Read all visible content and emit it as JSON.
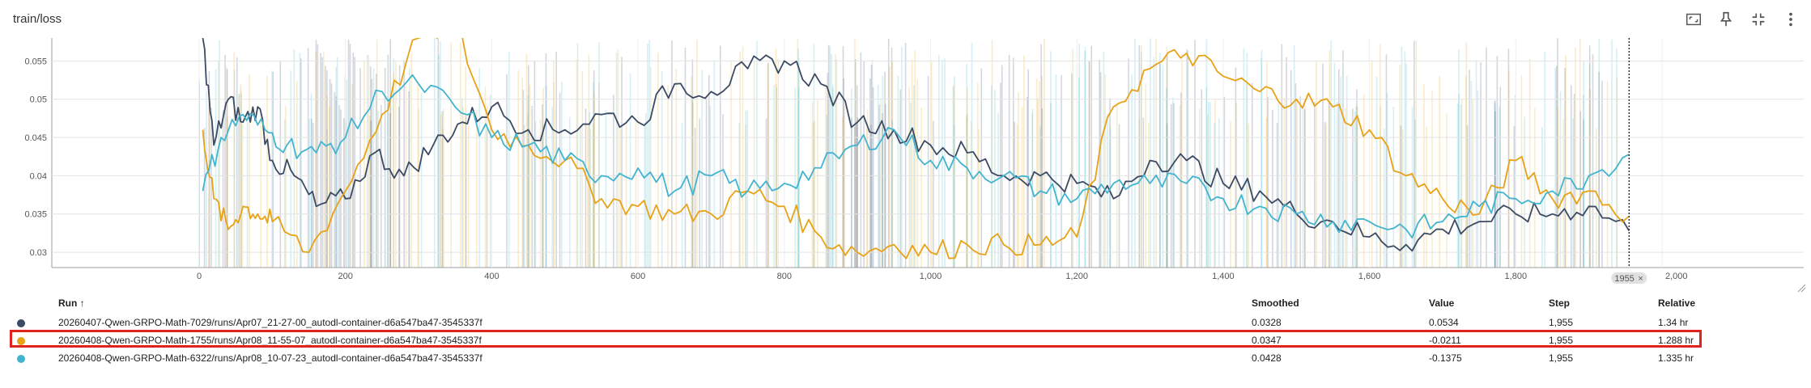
{
  "card": {
    "title": "train/loss"
  },
  "toolbar": [
    {
      "name": "fit-domain-button",
      "icon": "fit-screen-icon"
    },
    {
      "name": "pin-button",
      "icon": "pin-icon"
    },
    {
      "name": "collapse-button",
      "icon": "collapse-icon"
    },
    {
      "name": "more-menu-button",
      "icon": "more-vert-icon"
    }
  ],
  "step_marker": {
    "label": "1955",
    "close": "×"
  },
  "table": {
    "headers": {
      "run": "Run",
      "sort": "↑",
      "smoothed": "Smoothed",
      "value": "Value",
      "step": "Step",
      "relative": "Relative"
    },
    "rows": [
      {
        "run": "20260407-Qwen-GRPO-Math-7029/runs/Apr07_21-27-00_autodl-container-d6a547ba47-3545337f",
        "smoothed": "0.0328",
        "value": "0.0534",
        "step": "1,955",
        "relative": "1.34 hr",
        "color": "#3c4a63"
      },
      {
        "run": "20260408-Qwen-GRPO-Math-1755/runs/Apr08_11-55-07_autodl-container-d6a547ba47-3545337f",
        "smoothed": "0.0347",
        "value": "-0.0211",
        "step": "1,955",
        "relative": "1.288 hr",
        "color": "#e8a215"
      },
      {
        "run": "20260408-Qwen-GRPO-Math-6322/runs/Apr08_10-07-23_autodl-container-d6a547ba47-3545337f",
        "smoothed": "0.0428",
        "value": "-0.1375",
        "step": "1,955",
        "relative": "1.335 hr",
        "color": "#42b4cf"
      }
    ]
  },
  "chart_data": {
    "type": "line",
    "title": "train/loss",
    "xlabel": "",
    "ylabel": "",
    "xlim": [
      0,
      2000
    ],
    "ylim": [
      0.028,
      0.058
    ],
    "x_ticks": [
      "0",
      "200",
      "400",
      "600",
      "800",
      "1,000",
      "1,200",
      "1,400",
      "1,600",
      "1,800",
      "2,000"
    ],
    "y_ticks": [
      "0.03",
      "0.035",
      "0.04",
      "0.045",
      "0.05",
      "0.055"
    ],
    "grid": true,
    "cursor_step": 1955,
    "series": [
      {
        "name": "20260407-Qwen-GRPO-Math-7029/runs/Apr07_21-27-00_autodl-container-d6a547ba47-3545337f",
        "color": "#3c4a63",
        "x": [
          5,
          20,
          40,
          60,
          80,
          100,
          130,
          160,
          200,
          240,
          280,
          320,
          360,
          400,
          450,
          500,
          550,
          600,
          650,
          700,
          750,
          800,
          850,
          900,
          950,
          1000,
          1050,
          1100,
          1150,
          1200,
          1250,
          1300,
          1350,
          1400,
          1450,
          1500,
          1550,
          1600,
          1650,
          1700,
          1750,
          1800,
          1850,
          1900,
          1955
        ],
        "y": [
          0.058,
          0.044,
          0.05,
          0.047,
          0.049,
          0.042,
          0.04,
          0.036,
          0.037,
          0.043,
          0.04,
          0.044,
          0.047,
          0.049,
          0.046,
          0.046,
          0.048,
          0.047,
          0.052,
          0.051,
          0.054,
          0.055,
          0.052,
          0.047,
          0.046,
          0.044,
          0.043,
          0.04,
          0.04,
          0.039,
          0.037,
          0.042,
          0.042,
          0.039,
          0.038,
          0.035,
          0.034,
          0.032,
          0.031,
          0.033,
          0.034,
          0.035,
          0.035,
          0.036,
          0.0328
        ]
      },
      {
        "name": "20260408-Qwen-GRPO-Math-1755/runs/Apr08_11-55-07_autodl-container-d6a547ba47-3545337f",
        "color": "#e8a215",
        "x": [
          5,
          20,
          40,
          60,
          80,
          100,
          150,
          200,
          250,
          300,
          350,
          400,
          450,
          500,
          550,
          600,
          650,
          700,
          750,
          800,
          850,
          900,
          950,
          1000,
          1050,
          1100,
          1150,
          1200,
          1250,
          1300,
          1350,
          1400,
          1450,
          1500,
          1550,
          1600,
          1650,
          1700,
          1750,
          1800,
          1850,
          1900,
          1955
        ],
        "y": [
          0.046,
          0.037,
          0.033,
          0.036,
          0.035,
          0.034,
          0.03,
          0.038,
          0.048,
          0.058,
          0.06,
          0.046,
          0.044,
          0.042,
          0.037,
          0.036,
          0.035,
          0.035,
          0.038,
          0.036,
          0.032,
          0.03,
          0.031,
          0.03,
          0.031,
          0.031,
          0.031,
          0.032,
          0.049,
          0.054,
          0.056,
          0.053,
          0.051,
          0.05,
          0.049,
          0.046,
          0.04,
          0.037,
          0.035,
          0.042,
          0.037,
          0.038,
          0.0347
        ]
      },
      {
        "name": "20260408-Qwen-GRPO-Math-6322/runs/Apr08_10-07-23_autodl-container-d6a547ba47-3545337f",
        "color": "#42b4cf",
        "x": [
          5,
          30,
          60,
          90,
          120,
          160,
          200,
          250,
          300,
          350,
          400,
          450,
          500,
          550,
          600,
          650,
          700,
          750,
          800,
          850,
          900,
          950,
          1000,
          1050,
          1100,
          1150,
          1200,
          1250,
          1300,
          1350,
          1400,
          1450,
          1500,
          1550,
          1600,
          1650,
          1700,
          1750,
          1800,
          1850,
          1900,
          1955
        ],
        "y": [
          0.038,
          0.045,
          0.048,
          0.046,
          0.044,
          0.043,
          0.045,
          0.051,
          0.052,
          0.049,
          0.045,
          0.044,
          0.042,
          0.04,
          0.041,
          0.038,
          0.04,
          0.038,
          0.039,
          0.041,
          0.044,
          0.046,
          0.042,
          0.041,
          0.04,
          0.038,
          0.037,
          0.039,
          0.039,
          0.039,
          0.037,
          0.036,
          0.035,
          0.034,
          0.034,
          0.033,
          0.034,
          0.036,
          0.037,
          0.038,
          0.04,
          0.0428
        ]
      }
    ]
  }
}
